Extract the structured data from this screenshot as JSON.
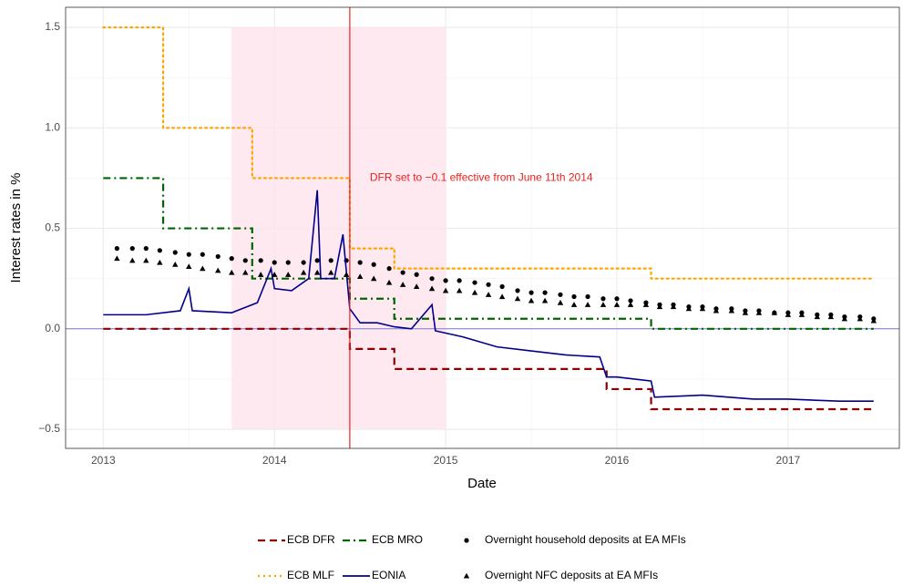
{
  "chart_data": {
    "type": "line",
    "xlabel": "Date",
    "ylabel": "Interest rates in %",
    "xlim": [
      2012.78,
      2017.65
    ],
    "ylim": [
      -0.595,
      1.6
    ],
    "xticks": [
      2013,
      2014,
      2015,
      2016,
      2017
    ],
    "yticks": [
      {
        "value": -0.5,
        "label": "−0.5"
      },
      {
        "value": 0,
        "label": "0.0"
      },
      0.5,
      {
        "value": 1,
        "label": "1.0"
      },
      {
        "value": 1.5,
        "label": "1.5"
      }
    ],
    "grid": true,
    "minor_grid": true,
    "hline": {
      "value": 0,
      "color": "#7b7bd1"
    },
    "shade": {
      "x": [
        2013.75,
        2015.0
      ],
      "y": [
        -0.5,
        1.5
      ],
      "color": "#ffe4ec"
    },
    "vline": {
      "value": 2014.44,
      "color": "#e8231f",
      "text": "DFR set to −0.1 effective from June 11th 2014"
    },
    "legend": "bottom",
    "series": [
      {
        "name": "ECB DFR",
        "color": "#8b0000",
        "linetype": "dashed",
        "x": [
          2013,
          2014.44,
          2014.44,
          2014.7,
          2014.7,
          2015.94,
          2015.94,
          2016.2,
          2016.2,
          2017.5
        ],
        "values": [
          0,
          0,
          -0.1,
          -0.1,
          -0.2,
          -0.2,
          -0.3,
          -0.3,
          -0.4,
          -0.4
        ]
      },
      {
        "name": "ECB MRO",
        "color": "#006400",
        "linetype": "dotdash",
        "x": [
          2013,
          2013.35,
          2013.35,
          2013.87,
          2013.87,
          2014.44,
          2014.44,
          2014.7,
          2014.7,
          2016.2,
          2016.2,
          2017.5
        ],
        "values": [
          0.75,
          0.75,
          0.5,
          0.5,
          0.25,
          0.25,
          0.15,
          0.15,
          0.05,
          0.05,
          0,
          0
        ]
      },
      {
        "name": "Overnight household deposits at EA MFIs",
        "color": "#000000",
        "shape": "circle",
        "x": [
          2013.08,
          2013.17,
          2013.25,
          2013.33,
          2013.42,
          2013.5,
          2013.58,
          2013.67,
          2013.75,
          2013.83,
          2013.92,
          2014.0,
          2014.08,
          2014.17,
          2014.25,
          2014.33,
          2014.42,
          2014.5,
          2014.58,
          2014.67,
          2014.75,
          2014.83,
          2014.92,
          2015.0,
          2015.08,
          2015.17,
          2015.25,
          2015.33,
          2015.42,
          2015.5,
          2015.58,
          2015.67,
          2015.75,
          2015.83,
          2015.92,
          2016.0,
          2016.08,
          2016.17,
          2016.25,
          2016.33,
          2016.42,
          2016.5,
          2016.58,
          2016.67,
          2016.75,
          2016.83,
          2016.92,
          2017.0,
          2017.08,
          2017.17,
          2017.25,
          2017.33,
          2017.42,
          2017.5
        ],
        "values": [
          0.4,
          0.4,
          0.4,
          0.39,
          0.38,
          0.37,
          0.37,
          0.36,
          0.35,
          0.34,
          0.34,
          0.33,
          0.33,
          0.33,
          0.34,
          0.34,
          0.34,
          0.33,
          0.32,
          0.3,
          0.28,
          0.27,
          0.25,
          0.24,
          0.24,
          0.23,
          0.22,
          0.21,
          0.19,
          0.18,
          0.18,
          0.17,
          0.16,
          0.16,
          0.15,
          0.15,
          0.14,
          0.13,
          0.12,
          0.12,
          0.11,
          0.11,
          0.1,
          0.1,
          0.09,
          0.09,
          0.08,
          0.08,
          0.08,
          0.07,
          0.07,
          0.06,
          0.06,
          0.05
        ]
      },
      {
        "name": "ECB MLF",
        "color": "#ffa500",
        "linetype": "dotted",
        "x": [
          2013,
          2013.35,
          2013.35,
          2013.87,
          2013.87,
          2014.44,
          2014.44,
          2014.7,
          2014.7,
          2016.2,
          2016.2,
          2017.5
        ],
        "values": [
          1.5,
          1.5,
          1.0,
          1.0,
          0.75,
          0.75,
          0.4,
          0.4,
          0.3,
          0.3,
          0.25,
          0.25
        ]
      },
      {
        "name": "EONIA",
        "color": "#00008b",
        "linetype": "solid",
        "x": [
          2013.0,
          2013.25,
          2013.45,
          2013.5,
          2013.52,
          2013.75,
          2013.9,
          2013.98,
          2014.0,
          2014.1,
          2014.2,
          2014.25,
          2014.27,
          2014.35,
          2014.4,
          2014.44,
          2014.5,
          2014.6,
          2014.7,
          2014.8,
          2014.92,
          2014.94,
          2015.1,
          2015.3,
          2015.5,
          2015.7,
          2015.9,
          2015.94,
          2016.0,
          2016.2,
          2016.22,
          2016.5,
          2016.8,
          2017.0,
          2017.3,
          2017.5
        ],
        "values": [
          0.07,
          0.07,
          0.09,
          0.2,
          0.09,
          0.08,
          0.13,
          0.3,
          0.2,
          0.19,
          0.25,
          0.69,
          0.25,
          0.25,
          0.47,
          0.1,
          0.03,
          0.03,
          0.01,
          0.0,
          0.12,
          -0.01,
          -0.04,
          -0.09,
          -0.11,
          -0.13,
          -0.14,
          -0.24,
          -0.24,
          -0.26,
          -0.34,
          -0.33,
          -0.35,
          -0.35,
          -0.36,
          -0.36
        ]
      },
      {
        "name": "Overnight NFC deposits at EA MFIs",
        "color": "#000000",
        "shape": "triangle",
        "x": [
          2013.08,
          2013.17,
          2013.25,
          2013.33,
          2013.42,
          2013.5,
          2013.58,
          2013.67,
          2013.75,
          2013.83,
          2013.92,
          2014.0,
          2014.08,
          2014.17,
          2014.25,
          2014.33,
          2014.42,
          2014.5,
          2014.58,
          2014.67,
          2014.75,
          2014.83,
          2014.92,
          2015.0,
          2015.08,
          2015.17,
          2015.25,
          2015.33,
          2015.42,
          2015.5,
          2015.58,
          2015.67,
          2015.75,
          2015.83,
          2015.92,
          2016.0,
          2016.08,
          2016.17,
          2016.25,
          2016.33,
          2016.42,
          2016.5,
          2016.58,
          2016.67,
          2016.75,
          2016.83,
          2016.92,
          2017.0,
          2017.08,
          2017.17,
          2017.25,
          2017.33,
          2017.42,
          2017.5
        ],
        "values": [
          0.35,
          0.34,
          0.34,
          0.33,
          0.32,
          0.31,
          0.3,
          0.29,
          0.28,
          0.28,
          0.27,
          0.27,
          0.27,
          0.28,
          0.28,
          0.28,
          0.27,
          0.26,
          0.25,
          0.23,
          0.22,
          0.21,
          0.2,
          0.19,
          0.19,
          0.18,
          0.17,
          0.16,
          0.15,
          0.14,
          0.14,
          0.13,
          0.12,
          0.12,
          0.12,
          0.12,
          0.12,
          0.12,
          0.11,
          0.11,
          0.1,
          0.1,
          0.09,
          0.09,
          0.08,
          0.08,
          0.08,
          0.07,
          0.07,
          0.06,
          0.06,
          0.05,
          0.05,
          0.04
        ]
      }
    ]
  }
}
